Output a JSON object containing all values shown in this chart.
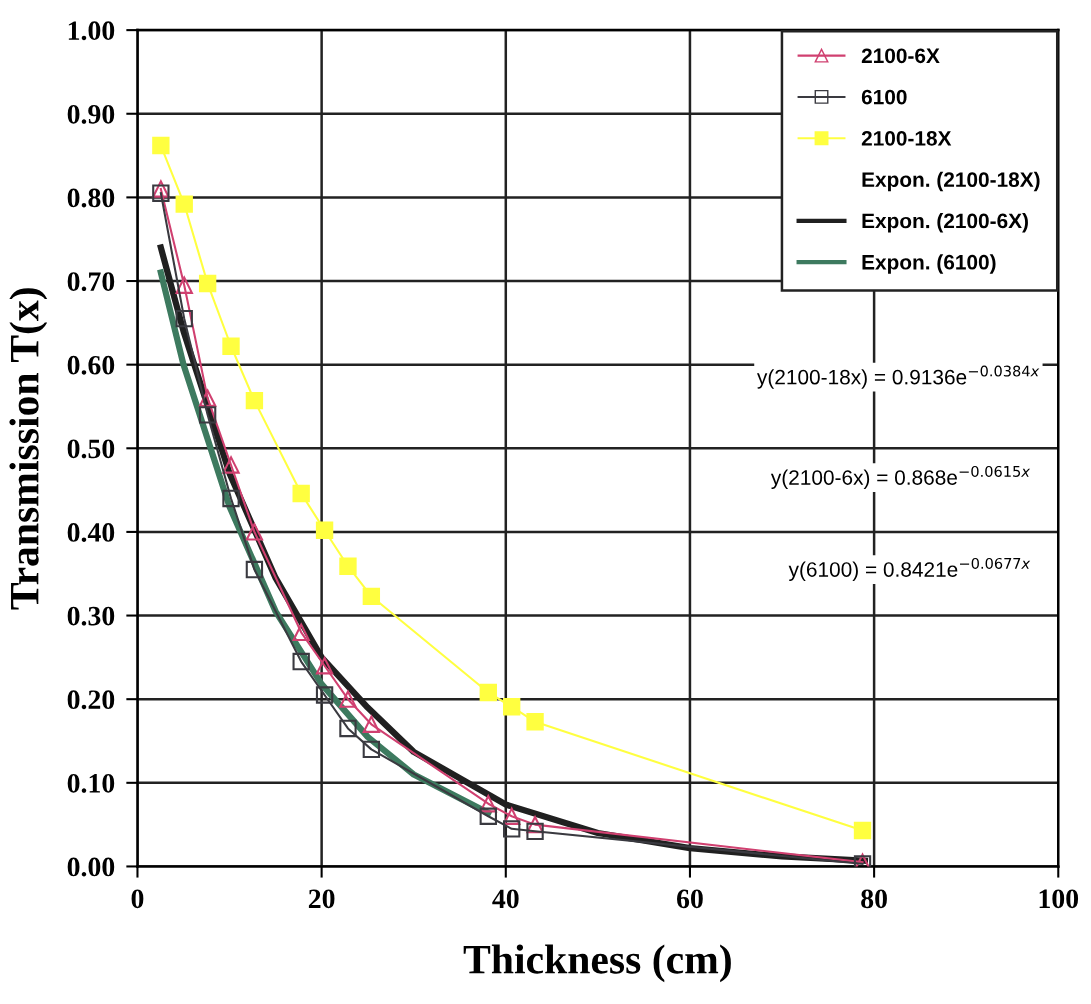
{
  "chart_data": {
    "type": "line",
    "xlabel": "Thickness (cm)",
    "ylabel": "Transmission T(x)",
    "xlim": [
      0,
      100
    ],
    "xticks": [
      0,
      20,
      40,
      60,
      80,
      100
    ],
    "ylim": [
      0,
      1
    ],
    "yticks": [
      {
        "value": 0,
        "label": "0.00"
      },
      {
        "value": 0.1,
        "label": "0.10"
      },
      {
        "value": 0.2,
        "label": "0.20"
      },
      {
        "value": 0.3,
        "label": "0.30"
      },
      {
        "value": 0.4,
        "label": "0.40"
      },
      {
        "value": 0.5,
        "label": "0.50"
      },
      {
        "value": 0.6,
        "label": "0.60"
      },
      {
        "value": 0.7,
        "label": "0.70"
      },
      {
        "value": 0.8,
        "label": "0.80"
      },
      {
        "value": 0.9,
        "label": "0.90"
      },
      {
        "value": 1.0,
        "label": "1.00"
      }
    ],
    "grid": true,
    "legend": "top right",
    "series": [
      {
        "name": "2100-6X",
        "color": "#d04070",
        "marker": "triangle",
        "x": [
          2.54,
          5.08,
          7.62,
          10.16,
          12.7,
          17.78,
          20.32,
          22.86,
          25.4,
          38.1,
          40.64,
          43.18,
          78.74
        ],
        "values": [
          0.81,
          0.695,
          0.56,
          0.48,
          0.4,
          0.28,
          0.24,
          0.2,
          0.17,
          0.075,
          0.06,
          0.05,
          0.005
        ]
      },
      {
        "name": "6100",
        "color": "#3a3a40",
        "marker": "square",
        "x": [
          2.54,
          5.08,
          7.62,
          10.16,
          12.7,
          17.78,
          20.32,
          22.86,
          25.4,
          38.1,
          40.64,
          43.18,
          78.74
        ],
        "values": [
          0.805,
          0.655,
          0.54,
          0.44,
          0.355,
          0.245,
          0.205,
          0.165,
          0.14,
          0.06,
          0.045,
          0.042,
          0.003
        ]
      },
      {
        "name": "2100-18X",
        "color": "#ffff40",
        "marker": "square",
        "x": [
          2.54,
          5.08,
          7.62,
          10.16,
          12.7,
          17.78,
          20.32,
          22.86,
          25.4,
          38.1,
          40.64,
          43.18,
          78.74
        ],
        "values": [
          0.862,
          0.792,
          0.697,
          0.622,
          0.557,
          0.446,
          0.402,
          0.359,
          0.323,
          0.208,
          0.191,
          0.173,
          0.043
        ]
      },
      {
        "name": "Expon. (2100-18X)",
        "marker": "none"
      },
      {
        "name": "Expon. (2100-6X)",
        "color": "#202020",
        "marker": "none",
        "x": [
          2.54,
          5,
          10,
          15,
          20,
          25,
          30,
          40,
          50,
          60,
          70,
          79
        ],
        "values": [
          0.74,
          0.64,
          0.47,
          0.345,
          0.25,
          0.19,
          0.137,
          0.074,
          0.04,
          0.022,
          0.012,
          0.007
        ]
      },
      {
        "name": "Expon. (6100)",
        "color": "#3d7a5f",
        "marker": "none",
        "x": [
          2.54,
          5,
          10,
          15,
          20,
          25,
          30,
          38.1
        ],
        "values": [
          0.71,
          0.6,
          0.43,
          0.305,
          0.218,
          0.155,
          0.11,
          0.064
        ]
      }
    ],
    "annotations": [
      "y(2100-18x) = 0.9136e$^{−0.0384x}$",
      "y(2100-6x) = 0.868e$^{−0.0615x}$",
      "y(6100) = 0.8421e$^{−0.0677x}$"
    ]
  }
}
